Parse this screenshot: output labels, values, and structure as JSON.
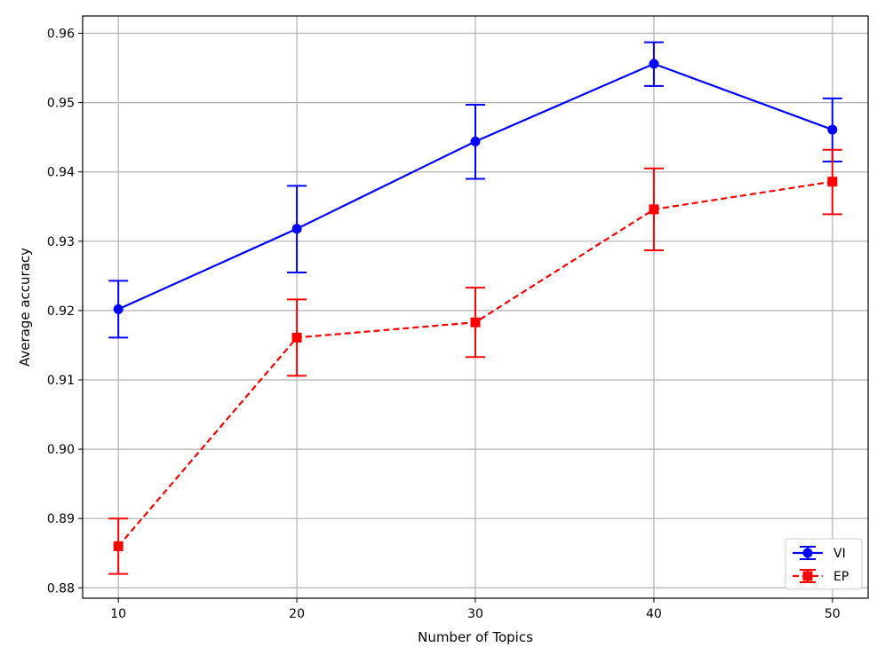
{
  "chart_data": {
    "type": "line",
    "xlabel": "Number of Topics",
    "ylabel": "Average accuracy",
    "x": [
      10,
      20,
      30,
      40,
      50
    ],
    "xticks": [
      "10",
      "20",
      "30",
      "40",
      "50"
    ],
    "xlim": [
      8,
      52
    ],
    "ylim": [
      0.8785,
      0.9625
    ],
    "yticks": [
      "0.88",
      "0.89",
      "0.90",
      "0.91",
      "0.92",
      "0.93",
      "0.94",
      "0.95",
      "0.96"
    ],
    "grid": true,
    "legend_position": "lower-right",
    "series": [
      {
        "name": "VI",
        "color": "#0000ff",
        "marker": "circle",
        "linestyle": "solid",
        "values": [
          0.9202,
          0.9318,
          0.9444,
          0.9556,
          0.9461
        ],
        "err_low": [
          0.9161,
          0.9255,
          0.939,
          0.9524,
          0.9415
        ],
        "err_high": [
          0.9243,
          0.938,
          0.9497,
          0.9587,
          0.9506
        ]
      },
      {
        "name": "EP",
        "color": "#ff0000",
        "marker": "square",
        "linestyle": "dashed",
        "values": [
          0.886,
          0.9161,
          0.9183,
          0.9346,
          0.9386
        ],
        "err_low": [
          0.882,
          0.9106,
          0.9133,
          0.9287,
          0.9339
        ],
        "err_high": [
          0.89,
          0.9216,
          0.9233,
          0.9405,
          0.9432
        ]
      }
    ]
  }
}
